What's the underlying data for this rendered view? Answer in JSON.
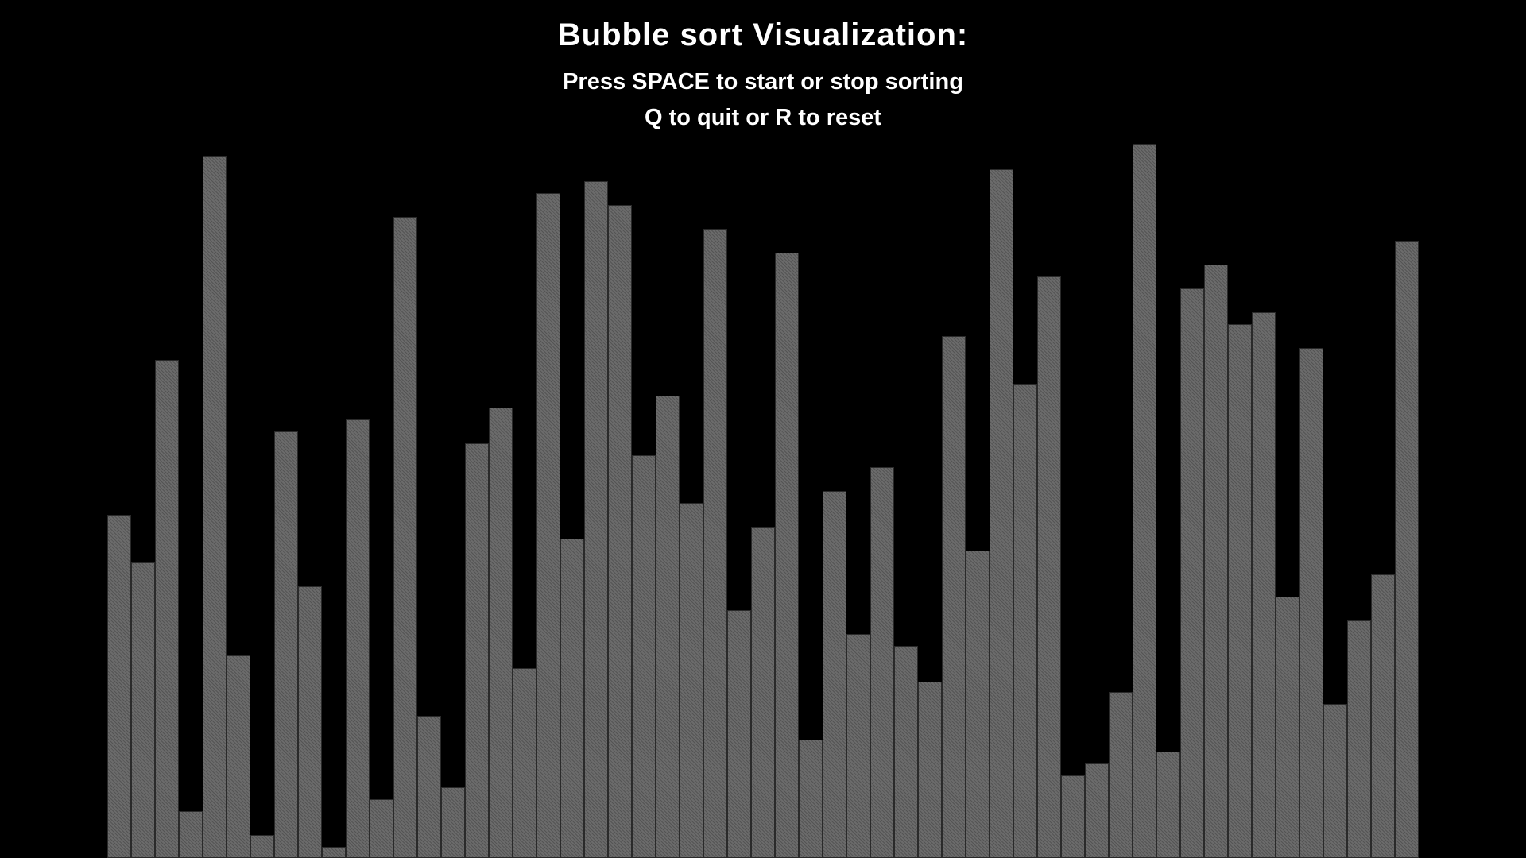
{
  "window": {
    "title": "Bubble sort Visualization:",
    "instructions": [
      "Press SPACE to start or stop sorting",
      "Q to quit or R to reset"
    ]
  },
  "colors": {
    "background": "#000000",
    "text": "#ffffff",
    "bar": "#6b6b6b",
    "bar_border": "#2a2a2a"
  },
  "chart_data": {
    "type": "bar",
    "values": [
      288,
      248,
      418,
      39,
      589,
      170,
      19,
      358,
      228,
      9,
      368,
      49,
      538,
      119,
      59,
      348,
      378,
      159,
      558,
      268,
      568,
      548,
      338,
      388,
      298,
      528,
      208,
      278,
      508,
      99,
      308,
      188,
      328,
      178,
      148,
      438,
      258,
      578,
      398,
      488,
      69,
      79,
      139,
      599,
      89,
      478,
      498,
      448,
      458,
      219,
      428,
      129,
      199,
      238,
      518
    ],
    "ylim": [
      0,
      600
    ]
  }
}
